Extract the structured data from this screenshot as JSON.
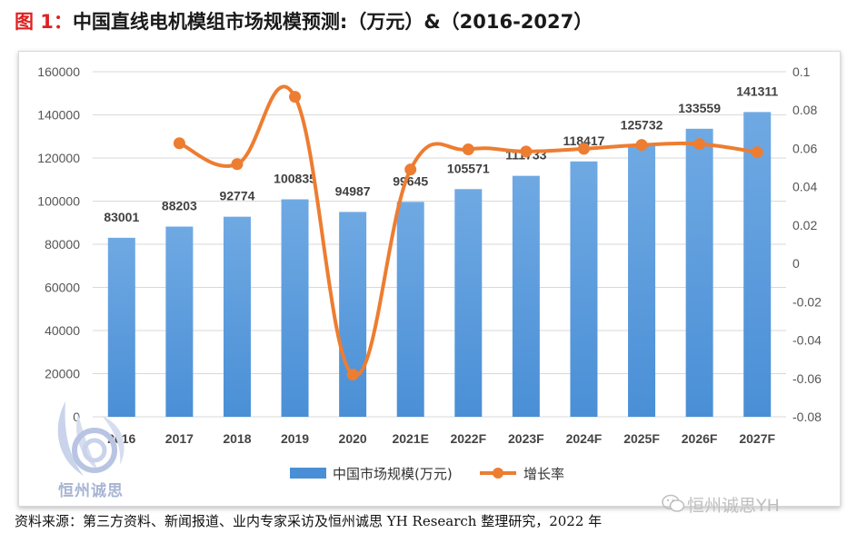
{
  "title": {
    "prefix": "图 1：",
    "text": "中国直线电机模组市场规模预测:（万元）&（2016-2027）"
  },
  "colors": {
    "bar": "#4a8fd6",
    "bar_light": "#6fa9e3",
    "line": "#ed7d31",
    "grid": "#d9d9d9",
    "title_prefix": "#e02020"
  },
  "chart_data": {
    "type": "bar",
    "categories": [
      "2016",
      "2017",
      "2018",
      "2019",
      "2020",
      "2021E",
      "2022F",
      "2023F",
      "2024F",
      "2025F",
      "2026F",
      "2027F"
    ],
    "series": [
      {
        "name": "中国市场规模(万元)",
        "type": "bar",
        "axis": "left",
        "values": [
          83001,
          88203,
          92774,
          100835,
          94987,
          99645,
          105571,
          111733,
          118417,
          125732,
          133559,
          141311
        ]
      },
      {
        "name": "增长率",
        "type": "line",
        "axis": "right",
        "values": [
          null,
          0.0627,
          0.0518,
          0.0869,
          -0.058,
          0.049,
          0.0595,
          0.0584,
          0.0598,
          0.0618,
          0.0623,
          0.058
        ]
      }
    ],
    "y_left": {
      "min": 0,
      "max": 160000,
      "step": 20000,
      "ticks": [
        "0",
        "20000",
        "40000",
        "60000",
        "80000",
        "100000",
        "120000",
        "140000",
        "160000"
      ]
    },
    "y_right": {
      "min": -0.08,
      "max": 0.1,
      "step": 0.02,
      "ticks": [
        "-0.08",
        "-0.06",
        "-0.04",
        "-0.02",
        "0",
        "0.02",
        "0.04",
        "0.06",
        "0.08",
        "0.1"
      ]
    },
    "grid": true,
    "legend_position": "bottom"
  },
  "legend": {
    "bar_label": "中国市场规模(万元)",
    "line_label": "增长率"
  },
  "logo_text": "恒州诚思",
  "source": "资料来源：第三方资料、新闻报道、业内专家采访及恒州诚思 YH Research 整理研究，2022 年",
  "watermark": "恒州诚思YH"
}
